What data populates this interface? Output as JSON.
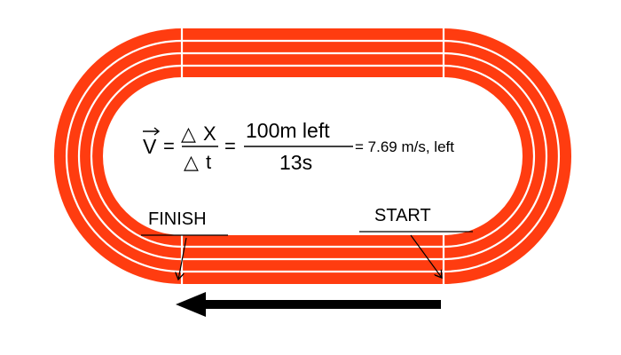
{
  "colors": {
    "track": "#ff3c10",
    "lane_line": "#ffffff",
    "background": "#ffffff",
    "ink": "#000000"
  },
  "equation": {
    "v_symbol": "V",
    "equals1": "=",
    "delta1": "△",
    "num_var": "X",
    "delta2": "△",
    "den_var": "t",
    "equals2": "=",
    "numerator": "100m left",
    "denominator": "13s",
    "result": "= 7.69 m/s, left"
  },
  "labels": {
    "finish": "FINISH",
    "start": "START"
  }
}
